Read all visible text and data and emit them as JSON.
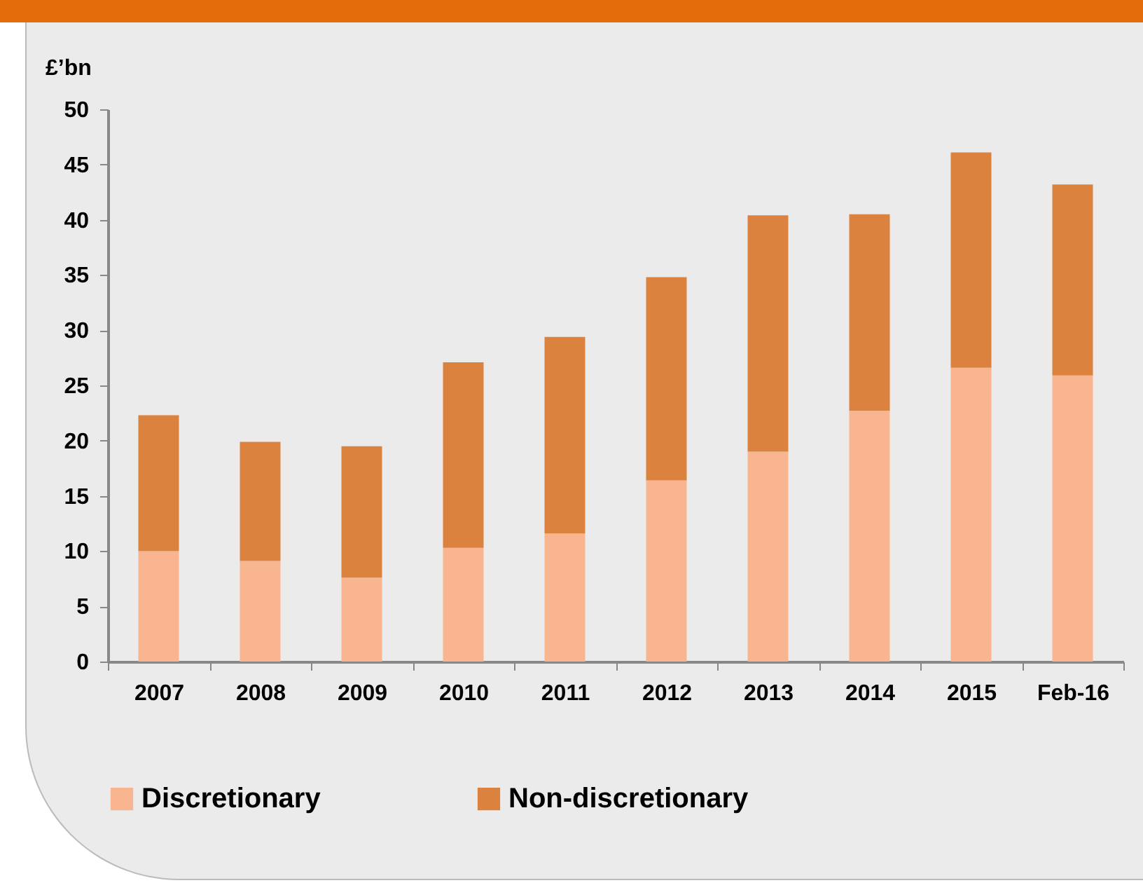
{
  "chart_data": {
    "type": "bar",
    "ylabel": "£’bn",
    "stacked": true,
    "legend": "bottom",
    "categories": [
      "2007",
      "2008",
      "2009",
      "2010",
      "2011",
      "2012",
      "2013",
      "2014",
      "2015",
      "Feb-16"
    ],
    "series": [
      {
        "name": "Discretionary",
        "color": "#f8b590",
        "values": [
          10.0,
          9.1,
          7.6,
          10.3,
          11.6,
          16.4,
          19.0,
          22.7,
          26.6,
          25.9
        ]
      },
      {
        "name": "Non-discretionary",
        "color": "#db833e",
        "values": [
          12.3,
          10.8,
          11.9,
          16.8,
          17.8,
          18.4,
          21.4,
          17.8,
          19.5,
          17.3
        ]
      }
    ],
    "ylim": [
      0,
      50
    ],
    "yticks": [
      0,
      5,
      10,
      15,
      20,
      25,
      30,
      35,
      40,
      45,
      50
    ]
  }
}
